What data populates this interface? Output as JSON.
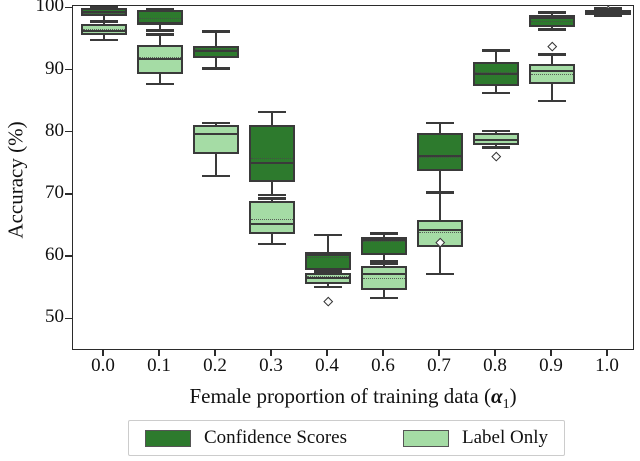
{
  "axes": {
    "ylabel": "Accuracy (%)",
    "xlabel_prefix": "Female proportion of training data (",
    "xlabel_alpha": "α",
    "xlabel_subscript": "1",
    "xlabel_close": ")",
    "yticks": [
      50,
      60,
      70,
      80,
      90,
      100
    ],
    "xticklabels": [
      "0.0",
      "0.1",
      "0.2",
      "0.3",
      "0.4",
      "0.6",
      "0.7",
      "0.8",
      "0.9",
      "1.0"
    ]
  },
  "legend": {
    "items": [
      {
        "label": "Confidence Scores",
        "color": "#2d7a2d"
      },
      {
        "label": "Label Only",
        "color": "#a5dca5"
      }
    ]
  },
  "colors": {
    "dark_green": "#2d7a2d",
    "light_green": "#a5dca5",
    "box_edge": "#3a3a3a",
    "axis": "#2b2b2b"
  },
  "chart_data": {
    "type": "boxplot",
    "title": "",
    "xlabel": "Female proportion of training data (α_1)",
    "ylabel": "Accuracy (%)",
    "ylim": [
      44.9,
      100.4
    ],
    "grid": false,
    "legend_position": "bottom",
    "categories": [
      "0.0",
      "0.1",
      "0.2",
      "0.3",
      "0.4",
      "0.6",
      "0.7",
      "0.8",
      "0.9",
      "1.0"
    ],
    "series": [
      {
        "name": "Confidence Scores",
        "color": "#2d7a2d",
        "boxes": [
          {
            "whislo": 98.0,
            "q1": 98.7,
            "med": 99.4,
            "mean": 99.2,
            "q3": 100.1,
            "whishi": 100.2,
            "outliers": []
          },
          {
            "whislo": 96.4,
            "q1": 97.3,
            "med": 97.6,
            "mean": 98.3,
            "q3": 99.7,
            "whishi": 99.8,
            "outliers": []
          },
          {
            "whislo": 90.3,
            "q1": 92.0,
            "med": 93.1,
            "mean": 93.3,
            "q3": 94.0,
            "whishi": 96.3,
            "outliers": []
          },
          {
            "whislo": 70.0,
            "q1": 72.0,
            "med": 75.2,
            "mean": 75.8,
            "q3": 81.3,
            "whishi": 83.3,
            "outliers": []
          },
          {
            "whislo": 56.8,
            "q1": 58.0,
            "med": 60.3,
            "mean": 59.9,
            "q3": 60.8,
            "whishi": 63.6,
            "outliers": []
          },
          {
            "whislo": 59.4,
            "q1": 60.3,
            "med": 62.8,
            "mean": 62.4,
            "q3": 63.3,
            "whishi": 63.8,
            "outliers": []
          },
          {
            "whislo": 70.4,
            "q1": 73.8,
            "med": 76.3,
            "mean": 76.0,
            "q3": 80.0,
            "whishi": 81.6,
            "outliers": []
          },
          {
            "whislo": 86.4,
            "q1": 87.5,
            "med": 89.5,
            "mean": 89.7,
            "q3": 91.3,
            "whishi": 93.2,
            "outliers": []
          },
          {
            "whislo": 96.6,
            "q1": 97.0,
            "med": 98.5,
            "mean": 97.8,
            "q3": 99.0,
            "whishi": 99.3,
            "outliers": []
          },
          {
            "whislo": 98.9,
            "q1": 99.2,
            "med": 99.5,
            "mean": 99.5,
            "q3": 99.8,
            "whishi": 100.0,
            "outliers": [
              99.6
            ]
          }
        ]
      },
      {
        "name": "Label Only",
        "color": "#a5dca5",
        "boxes": [
          {
            "whislo": 94.9,
            "q1": 95.7,
            "med": 96.3,
            "mean": 96.5,
            "q3": 97.5,
            "whishi": 97.9,
            "outliers": []
          },
          {
            "whislo": 87.8,
            "q1": 89.4,
            "med": 91.9,
            "mean": 92.1,
            "q3": 94.1,
            "whishi": 95.8,
            "outliers": []
          },
          {
            "whislo": 73.0,
            "q1": 76.6,
            "med": 79.8,
            "mean": 79.6,
            "q3": 81.3,
            "whishi": 81.6,
            "outliers": []
          },
          {
            "whislo": 62.1,
            "q1": 63.7,
            "med": 65.4,
            "mean": 66.0,
            "q3": 69.0,
            "whishi": 69.4,
            "outliers": []
          },
          {
            "whislo": 55.2,
            "q1": 55.7,
            "med": 56.6,
            "mean": 56.8,
            "q3": 57.5,
            "whishi": 57.7,
            "outliers": [
              52.9
            ]
          },
          {
            "whislo": 53.4,
            "q1": 54.7,
            "med": 57.3,
            "mean": 56.5,
            "q3": 58.6,
            "whishi": 59.0,
            "outliers": []
          },
          {
            "whislo": 57.3,
            "q1": 61.6,
            "med": 64.3,
            "mean": 63.9,
            "q3": 66.0,
            "whishi": 70.4,
            "outliers": [
              62.4
            ]
          },
          {
            "whislo": 77.6,
            "q1": 78.0,
            "med": 78.8,
            "mean": 78.9,
            "q3": 80.0,
            "whishi": 80.3,
            "outliers": [
              76.2
            ]
          },
          {
            "whislo": 85.1,
            "q1": 87.8,
            "med": 90.0,
            "mean": 89.4,
            "q3": 91.0,
            "whishi": 92.6,
            "outliers": [
              93.9
            ]
          },
          {
            "whislo": 98.8,
            "q1": 99.0,
            "med": 99.3,
            "mean": 99.3,
            "q3": 99.6,
            "whishi": 99.8,
            "outliers": []
          }
        ]
      }
    ]
  }
}
